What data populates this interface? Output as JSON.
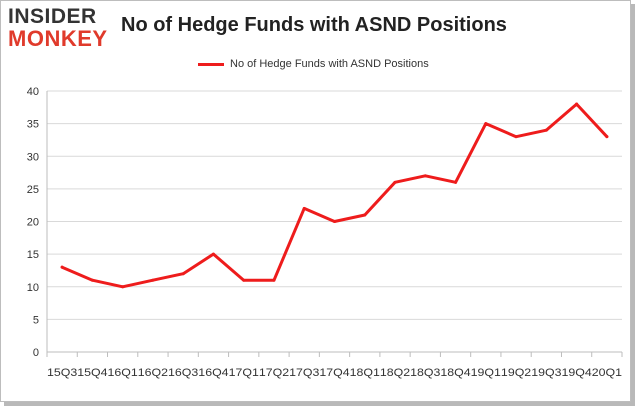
{
  "logo": {
    "line1": "INSIDER",
    "line2": "MONKEY"
  },
  "chart_data": {
    "type": "line",
    "title": "No of Hedge Funds with ASND Positions",
    "xlabel": "",
    "ylabel": "",
    "categories": [
      "15Q3",
      "15Q4",
      "16Q1",
      "16Q2",
      "16Q3",
      "16Q4",
      "17Q1",
      "17Q2",
      "17Q3",
      "17Q4",
      "18Q1",
      "18Q2",
      "18Q3",
      "18Q4",
      "19Q1",
      "19Q2",
      "19Q3",
      "19Q4",
      "20Q1"
    ],
    "series": [
      {
        "name": "No of Hedge Funds with ASND Positions",
        "values": [
          13,
          11,
          10,
          11,
          12,
          15,
          11,
          11,
          22,
          20,
          21,
          26,
          27,
          26,
          35,
          33,
          34,
          38,
          33
        ]
      }
    ],
    "ylim": [
      0,
      40
    ],
    "yticks": [
      0,
      5,
      10,
      15,
      20,
      25,
      30,
      35,
      40
    ],
    "grid": true,
    "legend_position": "top-center",
    "line_color": "#ee1c1c"
  }
}
